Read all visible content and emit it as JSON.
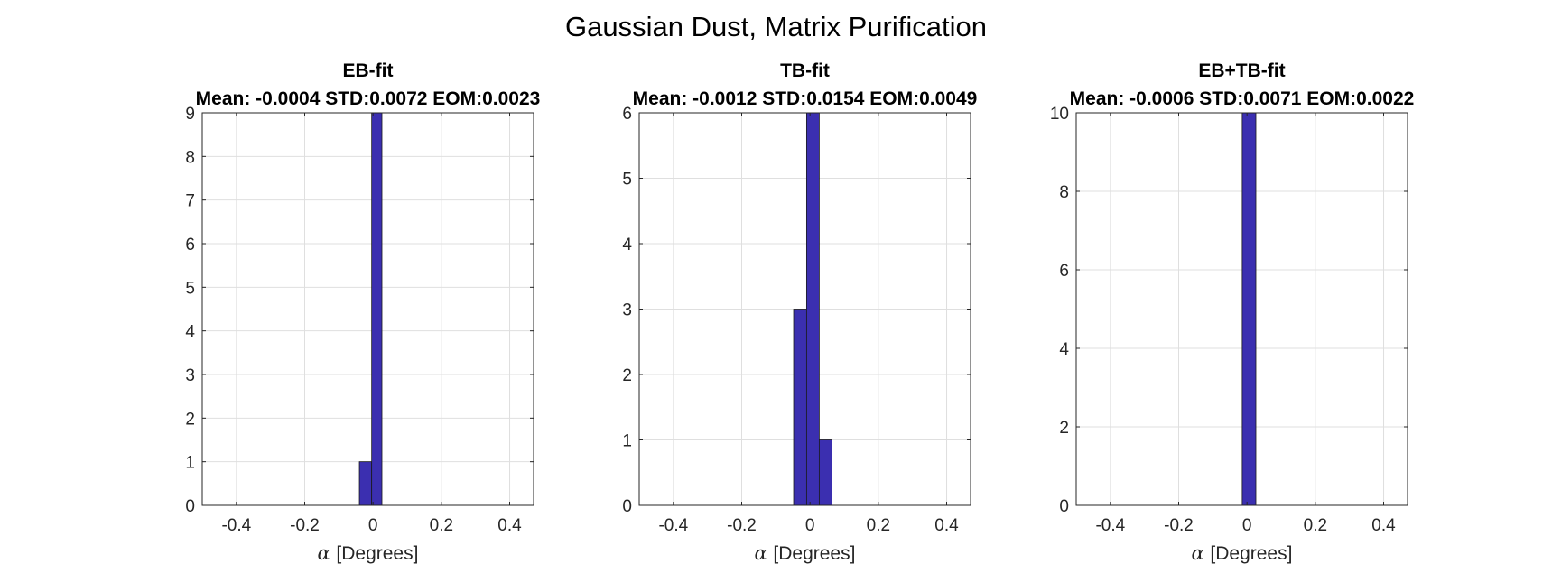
{
  "figure": {
    "title": "Gaussian Dust, Matrix Purification"
  },
  "chart_data": [
    {
      "type": "bar",
      "title": "EB-fit",
      "subtitle": "Mean: -0.0004 STD:0.0072 EOM:0.0023",
      "xlabel_symbol": "α",
      "xlabel": "[Degrees]",
      "ylabel": "",
      "xlim": [
        -0.5,
        0.47
      ],
      "ylim": [
        0,
        9
      ],
      "xticks": [
        -0.4,
        -0.2,
        0,
        0.2,
        0.4
      ],
      "xtick_labels": [
        "-0.4",
        "-0.2",
        "0",
        "0.2",
        "0.4"
      ],
      "yticks": [
        0,
        1,
        2,
        3,
        4,
        5,
        6,
        7,
        8,
        9
      ],
      "ytick_labels": [
        "0",
        "1",
        "2",
        "3",
        "4",
        "5",
        "6",
        "7",
        "8",
        "9"
      ],
      "bins": [
        {
          "x0": -0.04,
          "x1": -0.004,
          "count": 1
        },
        {
          "x0": -0.004,
          "x1": 0.026,
          "count": 9
        }
      ],
      "grid": true,
      "bar_color": "#3b2fb0"
    },
    {
      "type": "bar",
      "title": "TB-fit",
      "subtitle": "Mean: -0.0012 STD:0.0154 EOM:0.0049",
      "xlabel_symbol": "α",
      "xlabel": "[Degrees]",
      "ylabel": "",
      "xlim": [
        -0.5,
        0.47
      ],
      "ylim": [
        0,
        6
      ],
      "xticks": [
        -0.4,
        -0.2,
        0,
        0.2,
        0.4
      ],
      "xtick_labels": [
        "-0.4",
        "-0.2",
        "0",
        "0.2",
        "0.4"
      ],
      "yticks": [
        0,
        1,
        2,
        3,
        4,
        5,
        6
      ],
      "ytick_labels": [
        "0",
        "1",
        "2",
        "3",
        "4",
        "5",
        "6"
      ],
      "bins": [
        {
          "x0": -0.048,
          "x1": -0.01,
          "count": 3
        },
        {
          "x0": -0.01,
          "x1": 0.027,
          "count": 6
        },
        {
          "x0": 0.027,
          "x1": 0.064,
          "count": 1
        }
      ],
      "grid": true,
      "bar_color": "#3b2fb0"
    },
    {
      "type": "bar",
      "title": "EB+TB-fit",
      "subtitle": "Mean: -0.0006 STD:0.0071 EOM:0.0022",
      "xlabel_symbol": "α",
      "xlabel": "[Degrees]",
      "ylabel": "",
      "xlim": [
        -0.5,
        0.47
      ],
      "ylim": [
        0,
        10
      ],
      "xticks": [
        -0.4,
        -0.2,
        0,
        0.2,
        0.4
      ],
      "xtick_labels": [
        "-0.4",
        "-0.2",
        "0",
        "0.2",
        "0.4"
      ],
      "yticks": [
        0,
        2,
        4,
        6,
        8,
        10
      ],
      "ytick_labels": [
        "0",
        "2",
        "4",
        "6",
        "8",
        "10"
      ],
      "bins": [
        {
          "x0": -0.014,
          "x1": 0.026,
          "count": 10
        }
      ],
      "grid": true,
      "bar_color": "#3b2fb0"
    }
  ]
}
